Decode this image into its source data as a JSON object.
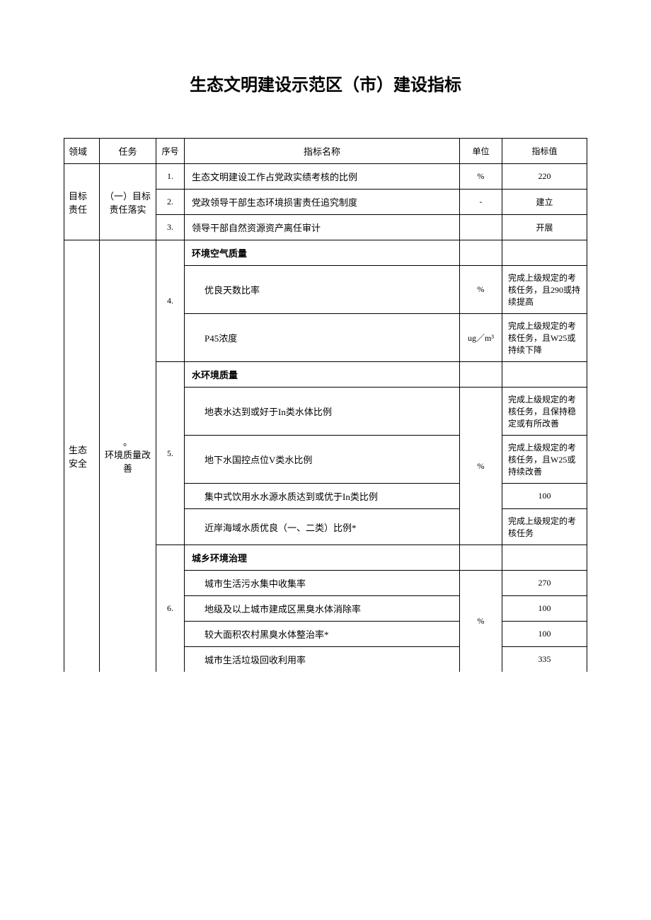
{
  "title": "生态文明建设示范区（市）建设指标",
  "headers": {
    "domain": "领域",
    "task": "任务",
    "seq": "序号",
    "name": "指标名称",
    "unit": "单位",
    "value": "指标值"
  },
  "domain1": "目标责任",
  "task1": "（一）目标责任落实",
  "domain2": "生态安全",
  "task2_prefix": "。",
  "task2": "环境质量改善",
  "rows": {
    "r1": {
      "seq": "1.",
      "name": "生态文明建设工作占党政实绩考核的比例",
      "unit": "%",
      "value": "220"
    },
    "r2": {
      "seq": "2.",
      "name": "党政领导干部生态环境损害责任追究制度",
      "unit": "-",
      "value": "建立"
    },
    "r3": {
      "seq": "3.",
      "name": "领导干部自然资源资产离任审计",
      "unit": "",
      "value": "开展"
    },
    "r4": {
      "seq": "4.",
      "header": "环境空气质量"
    },
    "r4a": {
      "name": "优良天数比率",
      "unit": "%",
      "value": "完成上级规定的考核任务，且290或持续提高"
    },
    "r4b": {
      "name": "P45浓度",
      "unit": "ug／m³",
      "value": "完成上级规定的考核任务，且W25或持续下降"
    },
    "r5": {
      "seq": "5.",
      "header": "水环境质量"
    },
    "r5a": {
      "name": "地表水达到或好于In类水体比例",
      "unit": "",
      "value": "完成上级规定的考核任务，且保持稳定或有所改善"
    },
    "r5b": {
      "name": "地下水国控点位V类水比例",
      "unit": "%",
      "value": "完成上级规定的考核任务，且W25或持续改善"
    },
    "r5c": {
      "name": "集中式饮用水水源水质达到或优于In类比例",
      "unit": "",
      "value": "100"
    },
    "r5d": {
      "name": "近岸海域水质优良（一、二类）比例*",
      "unit": "",
      "value": "完成上级规定的考核任务"
    },
    "r6": {
      "seq": "6.",
      "header": "城乡环境治理"
    },
    "r6a": {
      "name": "城市生活污水集中收集率",
      "unit": "",
      "value": "270"
    },
    "r6b": {
      "name": "地级及以上城市建成区黑臭水体消除率",
      "unit": "%",
      "value": "100"
    },
    "r6c": {
      "name": "较大面积农村黑臭水体整治率*",
      "unit": "",
      "value": "100"
    },
    "r6d": {
      "name": "城市生活垃圾回收利用率",
      "unit": "",
      "value": "335"
    }
  },
  "colors": {
    "border": "#000000",
    "background": "#ffffff",
    "text": "#000000"
  }
}
